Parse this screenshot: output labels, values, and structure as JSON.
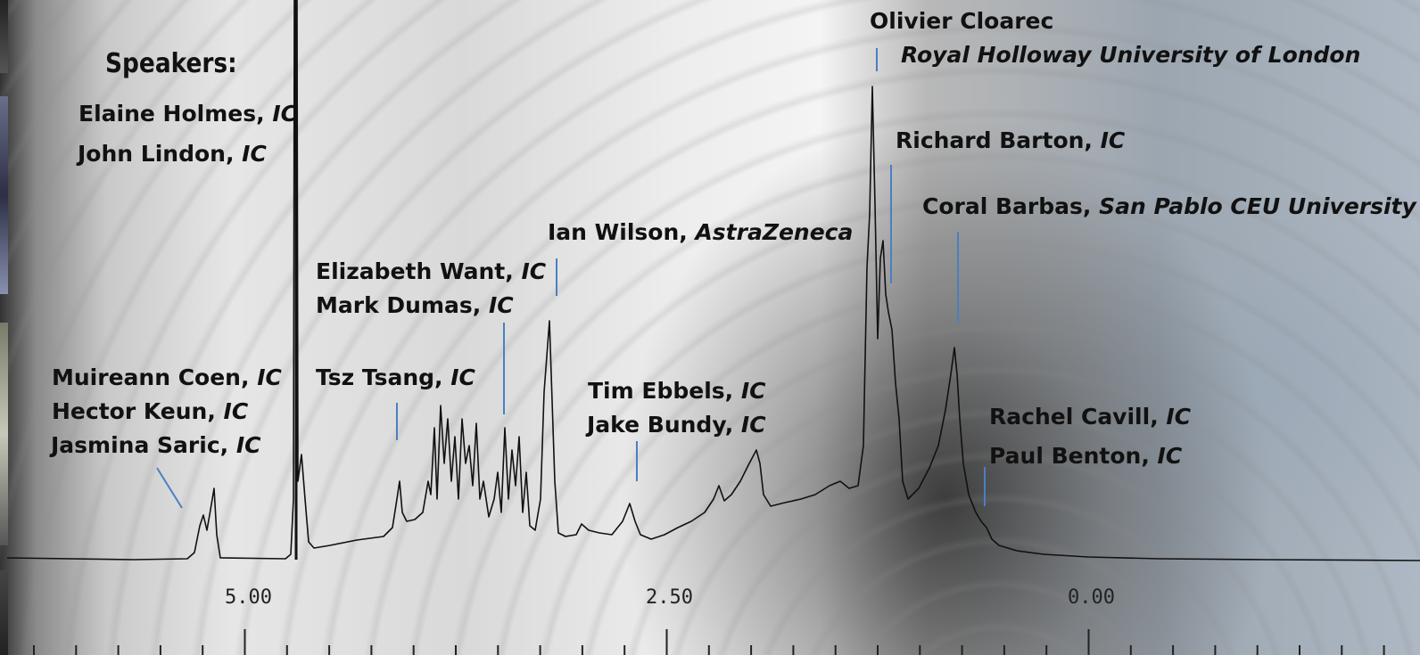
{
  "heading": "Speakers:",
  "speakers": [
    {
      "name": "Elaine Holmes",
      "aff": "IC",
      "sep": ", "
    },
    {
      "name": "John Lindon",
      "aff": "IC",
      "sep": ", "
    },
    {
      "name": "Muireann Coen",
      "aff": "IC",
      "sep": ", "
    },
    {
      "name": "Hector Keun",
      "aff": "IC",
      "sep": ", "
    },
    {
      "name": "Jasmina Saric",
      "aff": "IC",
      "sep": ", "
    },
    {
      "name": "Tsz Tsang",
      "aff": "IC",
      "sep": ", "
    },
    {
      "name": "Elizabeth Want",
      "aff": "IC",
      "sep": ", "
    },
    {
      "name": "Mark Dumas",
      "aff": "IC",
      "sep": ", "
    },
    {
      "name": "Ian Wilson",
      "aff": "AstraZeneca",
      "sep": ", "
    },
    {
      "name": "Tim Ebbels",
      "aff": "IC",
      "sep": ", "
    },
    {
      "name": "Jake Bundy",
      "aff": "IC",
      "sep": ", "
    },
    {
      "name": "Olivier Cloarec",
      "aff": "",
      "sep": ""
    },
    {
      "name": "",
      "aff": "Royal Holloway University of London",
      "sep": ""
    },
    {
      "name": "Richard Barton",
      "aff": "IC",
      "sep": ", "
    },
    {
      "name": "Coral Barbas",
      "aff": "San Pablo CEU University",
      "sep": ", "
    },
    {
      "name": "Rachel Cavill",
      "aff": "IC",
      "sep": ", "
    },
    {
      "name": "Paul Benton",
      "aff": "IC",
      "sep": ", "
    }
  ],
  "axis": {
    "tick_labels": [
      "5.00",
      "2.50",
      "0.00"
    ]
  },
  "colors": {
    "spectrum": "#111111",
    "pointer": "#4a7fc0"
  }
}
